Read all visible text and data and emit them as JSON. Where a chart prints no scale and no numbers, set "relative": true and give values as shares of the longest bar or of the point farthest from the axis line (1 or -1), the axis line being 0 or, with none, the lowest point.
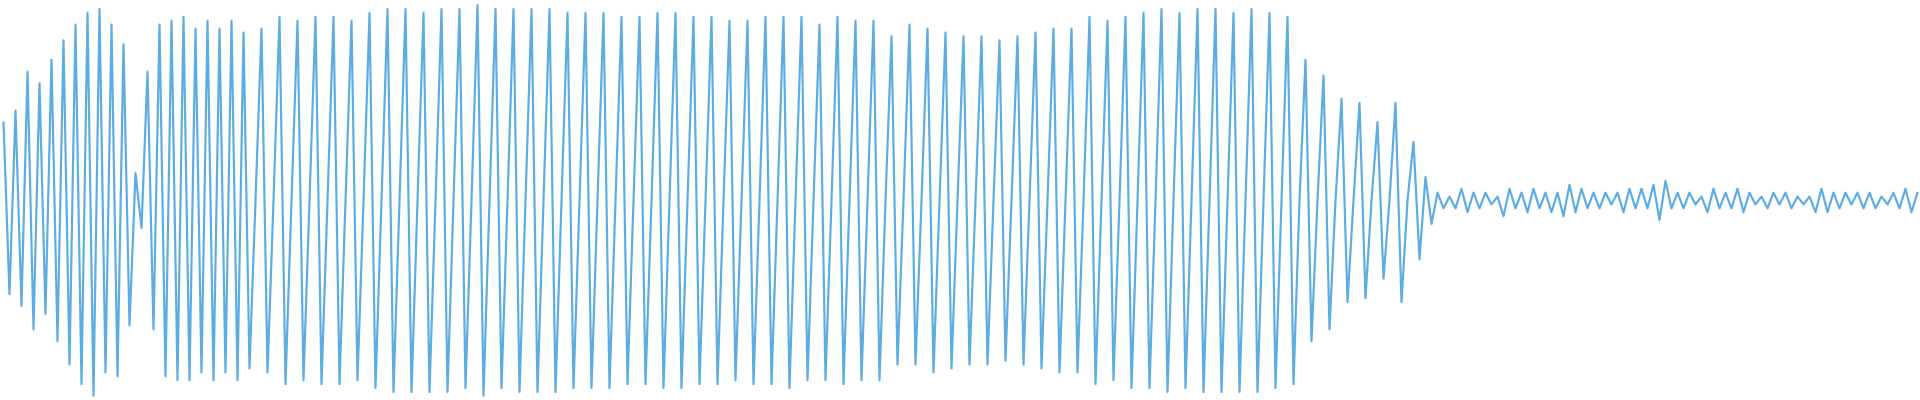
{
  "chart_data": {
    "type": "line",
    "relative": true,
    "categories": [
      null,
      null,
      null,
      null,
      null,
      null,
      null,
      null,
      null,
      null,
      null,
      null,
      null,
      null,
      null,
      null,
      null,
      null,
      null,
      null,
      null,
      null,
      null,
      null,
      null,
      null,
      null,
      null,
      null,
      null,
      null,
      null,
      null,
      null,
      null,
      null,
      null,
      null,
      null,
      null,
      null,
      null,
      null,
      null,
      null,
      null,
      null,
      null,
      null,
      null,
      null,
      null,
      null,
      null,
      null,
      null,
      null,
      null,
      null,
      null,
      null,
      null,
      null,
      null,
      null,
      null,
      null,
      null,
      null,
      null,
      null,
      null,
      null,
      null,
      null,
      null,
      null,
      null,
      null,
      null,
      null,
      null,
      null,
      null,
      null,
      null,
      null,
      null,
      null,
      null,
      null,
      null,
      null,
      null,
      null,
      null,
      null,
      null,
      null,
      null,
      null,
      null,
      null,
      null,
      null,
      null,
      null,
      null,
      null,
      null,
      null,
      null,
      null,
      null,
      null,
      null,
      null,
      null,
      null,
      null,
      null,
      null,
      null,
      null,
      null,
      null,
      null,
      null,
      null,
      null,
      null,
      null,
      null,
      null,
      null,
      null,
      null,
      null,
      null,
      null,
      null,
      null,
      null,
      null,
      null,
      null,
      null,
      null,
      null,
      null,
      null,
      null,
      null,
      null,
      null,
      null,
      null,
      null,
      null,
      null,
      null,
      null,
      null,
      null,
      null,
      null,
      null,
      null,
      null,
      null,
      null,
      null,
      null,
      null,
      null,
      null,
      null,
      null,
      null,
      null,
      null,
      null,
      null,
      null,
      null,
      null,
      null,
      null,
      null,
      null,
      null,
      null,
      null,
      null,
      null,
      null,
      null,
      null,
      null,
      null,
      null,
      null,
      null,
      null,
      null,
      null,
      null,
      null,
      null,
      null,
      null,
      null,
      null,
      null,
      null,
      null,
      null,
      null,
      null,
      null,
      null,
      null,
      null,
      null,
      null,
      null,
      null,
      null,
      null,
      null,
      null,
      null,
      null,
      null,
      null,
      null,
      null,
      null,
      null,
      null,
      null,
      null,
      null,
      null,
      null,
      null,
      null,
      null,
      null,
      null,
      null,
      null,
      null,
      null,
      null,
      null,
      null,
      null,
      null,
      null,
      null,
      null,
      null,
      null,
      null,
      null,
      null,
      null,
      null,
      null,
      null,
      null,
      null,
      null,
      null,
      null,
      null,
      null,
      null,
      null,
      null,
      null,
      null,
      null,
      null,
      null,
      null,
      null,
      null,
      null,
      null,
      null,
      null,
      null,
      null,
      null,
      null,
      null,
      null,
      null,
      null,
      null,
      null,
      null,
      null,
      null,
      null,
      null,
      null,
      null,
      null,
      null,
      null,
      null,
      null,
      null,
      null,
      null,
      null,
      null
    ],
    "series": [
      {
        "color": "#5dade2",
        "values": [
          0.7,
          0.26,
          0.73,
          0.23,
          0.83,
          0.17,
          0.8,
          0.21,
          0.86,
          0.14,
          0.91,
          0.08,
          0.95,
          0.03,
          0.98,
          0.0,
          0.99,
          0.06,
          0.95,
          0.05,
          0.9,
          0.18,
          0.57,
          0.43,
          0.83,
          0.17,
          0.95,
          0.05,
          0.96,
          0.04,
          0.97,
          0.04,
          0.94,
          0.06,
          0.96,
          0.04,
          0.94,
          0.06,
          0.96,
          0.04,
          0.93,
          0.07,
          0.5,
          0.94,
          0.06,
          0.5,
          0.97,
          0.03,
          0.5,
          0.96,
          0.04,
          0.5,
          0.97,
          0.03,
          0.5,
          0.97,
          0.03,
          0.5,
          0.96,
          0.04,
          0.5,
          0.98,
          0.02,
          0.5,
          0.99,
          0.01,
          0.5,
          0.99,
          0.01,
          0.5,
          0.98,
          0.01,
          0.5,
          0.99,
          0.01,
          0.5,
          0.99,
          0.02,
          0.5,
          1.0,
          0.0,
          0.5,
          0.99,
          0.02,
          0.5,
          0.99,
          0.01,
          0.5,
          0.99,
          0.01,
          0.5,
          0.99,
          0.01,
          0.5,
          0.98,
          0.02,
          0.5,
          0.98,
          0.02,
          0.5,
          0.98,
          0.02,
          0.5,
          0.97,
          0.03,
          0.5,
          0.97,
          0.03,
          0.5,
          0.98,
          0.02,
          0.5,
          0.98,
          0.02,
          0.5,
          0.97,
          0.03,
          0.5,
          0.97,
          0.03,
          0.5,
          0.96,
          0.04,
          0.5,
          0.96,
          0.03,
          0.5,
          0.97,
          0.03,
          0.5,
          0.97,
          0.02,
          0.5,
          0.97,
          0.04,
          0.5,
          0.95,
          0.04,
          0.5,
          0.97,
          0.03,
          0.5,
          0.96,
          0.04,
          0.5,
          0.96,
          0.04,
          0.5,
          0.92,
          0.08,
          0.5,
          0.95,
          0.08,
          0.5,
          0.94,
          0.06,
          0.5,
          0.93,
          0.07,
          0.5,
          0.92,
          0.08,
          0.5,
          0.92,
          0.08,
          0.5,
          0.91,
          0.09,
          0.5,
          0.92,
          0.08,
          0.5,
          0.93,
          0.07,
          0.5,
          0.94,
          0.06,
          0.5,
          0.94,
          0.06,
          0.5,
          0.97,
          0.03,
          0.5,
          0.96,
          0.04,
          0.5,
          0.97,
          0.02,
          0.5,
          0.98,
          0.02,
          0.5,
          0.99,
          0.01,
          0.5,
          0.98,
          0.02,
          0.5,
          0.99,
          0.01,
          0.5,
          0.99,
          0.01,
          0.5,
          0.98,
          0.01,
          0.5,
          0.99,
          0.01,
          0.5,
          0.98,
          0.02,
          0.5,
          0.97,
          0.03,
          0.5,
          0.86,
          0.14,
          0.5,
          0.82,
          0.17,
          0.5,
          0.76,
          0.24,
          0.5,
          0.75,
          0.25,
          0.5,
          0.7,
          0.3,
          0.5,
          0.75,
          0.24,
          0.5,
          0.65,
          0.35,
          0.56,
          0.44,
          0.52,
          0.48,
          0.51,
          0.48,
          0.53,
          0.47,
          0.52,
          0.48,
          0.52,
          0.49,
          0.51,
          0.46,
          0.53,
          0.48,
          0.52,
          0.47,
          0.53,
          0.48,
          0.52,
          0.47,
          0.52,
          0.46,
          0.54,
          0.47,
          0.53,
          0.48,
          0.52,
          0.48,
          0.52,
          0.49,
          0.52,
          0.47,
          0.53,
          0.48,
          0.53,
          0.48,
          0.54,
          0.45,
          0.55,
          0.48,
          0.52,
          0.48,
          0.52,
          0.49,
          0.51,
          0.47,
          0.53,
          0.48,
          0.52,
          0.48,
          0.53,
          0.47,
          0.52,
          0.49,
          0.51,
          0.48,
          0.52,
          0.49,
          0.52,
          0.48,
          0.51,
          0.49,
          0.51,
          0.47,
          0.53,
          0.47,
          0.52,
          0.48,
          0.52,
          0.49,
          0.52,
          0.48,
          0.52,
          0.48,
          0.51,
          0.49,
          0.52,
          0.48,
          0.53,
          0.47,
          0.52
        ]
      }
    ]
  }
}
